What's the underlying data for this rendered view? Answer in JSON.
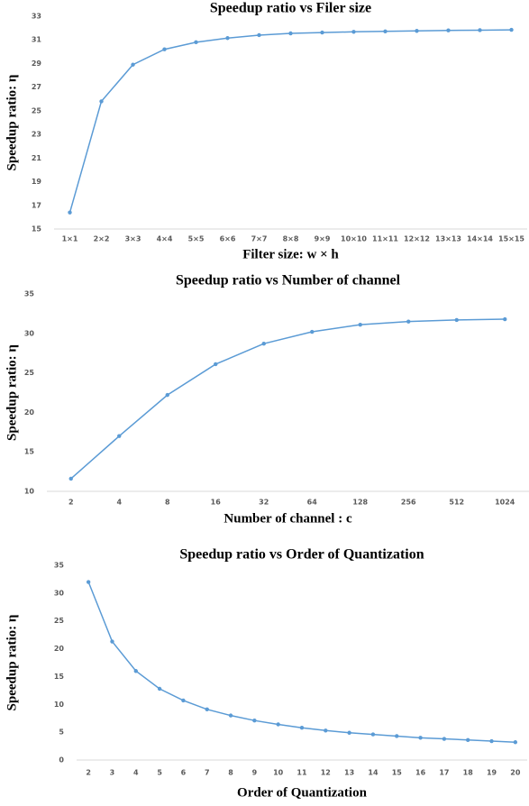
{
  "chart_data": [
    {
      "type": "line",
      "title": "Speedup ratio vs Filer size",
      "xlabel": "Filter size: w × h",
      "ylabel": "Speedup ratio: η",
      "categories": [
        "1×1",
        "2×2",
        "3×3",
        "4×4",
        "5×5",
        "6×6",
        "7×7",
        "8×8",
        "9×9",
        "10×10",
        "11×11",
        "12×12",
        "13×13",
        "14×14",
        "15×15"
      ],
      "values": [
        16.4,
        25.8,
        28.9,
        30.2,
        30.8,
        31.15,
        31.4,
        31.55,
        31.62,
        31.68,
        31.72,
        31.76,
        31.8,
        31.82,
        31.85
      ],
      "color": "#5b9bd5",
      "ylim": [
        15,
        33
      ],
      "yticks": [
        15,
        17,
        19,
        21,
        23,
        25,
        27,
        29,
        31,
        33
      ],
      "grid": false
    },
    {
      "type": "line",
      "title": "Speedup ratio vs Number of channel",
      "xlabel": "Number of channel : c",
      "ylabel": "Speedup ratio: η",
      "categories": [
        "2",
        "4",
        "8",
        "16",
        "32",
        "64",
        "128",
        "256",
        "512",
        "1024"
      ],
      "values": [
        11.6,
        17.0,
        22.2,
        26.1,
        28.7,
        30.2,
        31.1,
        31.5,
        31.7,
        31.8
      ],
      "color": "#5b9bd5",
      "ylim": [
        10,
        35
      ],
      "yticks": [
        10,
        15,
        20,
        25,
        30,
        35
      ],
      "grid": false
    },
    {
      "type": "line",
      "title": "Speedup ratio vs Order of Quantization",
      "xlabel": "Order of Quantization",
      "ylabel": "Speedup ratio: η",
      "categories": [
        "2",
        "3",
        "4",
        "5",
        "6",
        "7",
        "8",
        "9",
        "10",
        "11",
        "12",
        "13",
        "14",
        "15",
        "16",
        "17",
        "18",
        "19",
        "20"
      ],
      "values": [
        32,
        21.3,
        16,
        12.8,
        10.7,
        9.1,
        8,
        7.1,
        6.4,
        5.8,
        5.3,
        4.9,
        4.6,
        4.3,
        4.0,
        3.8,
        3.6,
        3.4,
        3.2
      ],
      "color": "#5b9bd5",
      "ylim": [
        0,
        35
      ],
      "yticks": [
        0,
        5,
        10,
        15,
        20,
        25,
        30,
        35
      ],
      "grid": false
    }
  ]
}
